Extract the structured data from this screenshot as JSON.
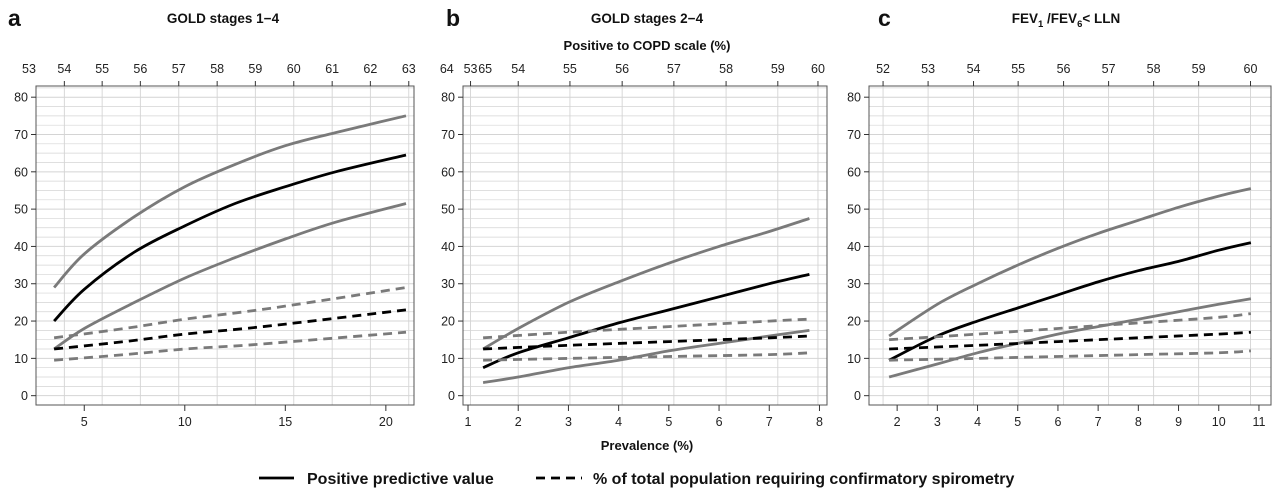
{
  "chart_data": [
    {
      "type": "line",
      "letter": "a",
      "title": "GOLD stages 1−4",
      "xlabel": "",
      "top_axis_label": "",
      "xlim": [
        2.6,
        21.4
      ],
      "xticks": [
        5,
        10,
        15,
        20
      ],
      "ylim": [
        -2.5,
        83
      ],
      "yticks": [
        0,
        10,
        20,
        30,
        40,
        50,
        60,
        70,
        80
      ],
      "top_ticks": [
        {
          "label": "53",
          "at": 2.25
        },
        {
          "label": "54",
          "at": 4.01
        },
        {
          "label": "55",
          "at": 5.89
        },
        {
          "label": "56",
          "at": 7.79
        },
        {
          "label": "57",
          "at": 9.7
        },
        {
          "label": "58",
          "at": 11.61
        },
        {
          "label": "59",
          "at": 13.51
        },
        {
          "label": "60",
          "at": 15.42
        },
        {
          "label": "61",
          "at": 17.33
        },
        {
          "label": "62",
          "at": 19.23
        },
        {
          "label": "63",
          "at": 21.14
        },
        {
          "label": "64",
          "at": 23.03
        },
        {
          "label": "65",
          "at": 24.94
        }
      ],
      "series": [
        {
          "style": "solid",
          "color": "#000000",
          "x": [
            3.5,
            5,
            7.5,
            10,
            12.5,
            15,
            17.5,
            21
          ],
          "y": [
            20,
            28.5,
            38.5,
            45.5,
            51.5,
            56,
            60,
            64.5
          ]
        },
        {
          "style": "solid",
          "color": "#7a7a7a",
          "x": [
            3.5,
            5,
            7.5,
            10,
            12.5,
            15,
            17.5,
            21
          ],
          "y": [
            29,
            38,
            48,
            56,
            62,
            67,
            70.5,
            75
          ]
        },
        {
          "style": "solid",
          "color": "#7a7a7a",
          "x": [
            3.5,
            5,
            7.5,
            10,
            12.5,
            15,
            17.5,
            21
          ],
          "y": [
            12.5,
            18,
            25,
            31.5,
            37,
            42,
            46.5,
            51.5
          ]
        },
        {
          "style": "dashed",
          "color": "#000000",
          "x": [
            3.5,
            7,
            10,
            13,
            16,
            21
          ],
          "y": [
            12.5,
            14.5,
            16.5,
            18,
            19.8,
            23
          ]
        },
        {
          "style": "dashed",
          "color": "#7a7a7a",
          "x": [
            3.5,
            7,
            10,
            13,
            16,
            21
          ],
          "y": [
            15.5,
            18,
            20.5,
            22.5,
            24.8,
            29
          ]
        },
        {
          "style": "dashed",
          "color": "#7a7a7a",
          "x": [
            3.5,
            7,
            10,
            13,
            16,
            21
          ],
          "y": [
            9.5,
            11,
            12.5,
            13.5,
            14.8,
            17
          ]
        }
      ]
    },
    {
      "type": "line",
      "letter": "b",
      "title": "GOLD stages 2−4",
      "xlabel": "Prevalence (%)",
      "top_axis_label": "Positive to COPD scale (%)",
      "xlim": [
        0.9,
        8.15
      ],
      "xticks": [
        1,
        2,
        3,
        4,
        5,
        6,
        7,
        8
      ],
      "ylim": [
        -2.5,
        83
      ],
      "yticks": [
        0,
        10,
        20,
        30,
        40,
        50,
        60,
        70,
        80
      ],
      "top_ticks": [
        {
          "label": "53",
          "at": 1.05
        },
        {
          "label": "54",
          "at": 2.0
        },
        {
          "label": "55",
          "at": 3.03
        },
        {
          "label": "56",
          "at": 4.07
        },
        {
          "label": "57",
          "at": 5.1
        },
        {
          "label": "58",
          "at": 6.14
        },
        {
          "label": "59",
          "at": 7.17
        },
        {
          "label": "60",
          "at": 7.97
        }
      ],
      "series": [
        {
          "style": "solid",
          "color": "#000000",
          "x": [
            1.3,
            2,
            3,
            4,
            5,
            6,
            7,
            7.8
          ],
          "y": [
            7.5,
            11.5,
            15.5,
            19.5,
            23,
            26.5,
            30,
            32.5
          ]
        },
        {
          "style": "solid",
          "color": "#7a7a7a",
          "x": [
            1.3,
            2,
            3,
            4,
            5,
            6,
            7,
            7.8
          ],
          "y": [
            12.5,
            18,
            25,
            30.5,
            35.5,
            40,
            44,
            47.5
          ]
        },
        {
          "style": "solid",
          "color": "#7a7a7a",
          "x": [
            1.3,
            2,
            3,
            4,
            5,
            6,
            7,
            7.8
          ],
          "y": [
            3.5,
            5,
            7.5,
            9.5,
            12,
            14,
            16,
            17.5
          ]
        },
        {
          "style": "dashed",
          "color": "#000000",
          "x": [
            1.3,
            3,
            5,
            7,
            7.8
          ],
          "y": [
            12.5,
            13.5,
            14.5,
            15.5,
            16
          ]
        },
        {
          "style": "dashed",
          "color": "#7a7a7a",
          "x": [
            1.3,
            3,
            5,
            7,
            7.8
          ],
          "y": [
            15.5,
            17,
            18.5,
            20,
            20.5
          ]
        },
        {
          "style": "dashed",
          "color": "#7a7a7a",
          "x": [
            1.3,
            3,
            5,
            7,
            7.8
          ],
          "y": [
            9.5,
            10,
            10.5,
            11,
            11.5
          ]
        }
      ]
    },
    {
      "type": "line",
      "letter": "c",
      "title_main": "FEV",
      "title_sub1": "1",
      "title_mid": " /FEV",
      "title_sub2": "6",
      "title_end": "< LLN",
      "xlabel": "",
      "top_axis_label": "",
      "xlim": [
        1.3,
        11.3
      ],
      "xticks": [
        2,
        3,
        4,
        5,
        6,
        7,
        8,
        9,
        10,
        11
      ],
      "ylim": [
        -2.5,
        83
      ],
      "yticks": [
        0,
        10,
        20,
        30,
        40,
        50,
        60,
        70,
        80
      ],
      "top_ticks": [
        {
          "label": "52",
          "at": 1.65
        },
        {
          "label": "53",
          "at": 2.77
        },
        {
          "label": "54",
          "at": 3.9
        },
        {
          "label": "55",
          "at": 5.01
        },
        {
          "label": "56",
          "at": 6.14
        },
        {
          "label": "57",
          "at": 7.26
        },
        {
          "label": "58",
          "at": 8.38
        },
        {
          "label": "59",
          "at": 9.5
        },
        {
          "label": "60",
          "at": 10.79
        }
      ],
      "series": [
        {
          "style": "solid",
          "color": "#000000",
          "x": [
            1.8,
            3,
            4,
            5,
            6,
            7,
            8,
            9,
            10,
            10.8
          ],
          "y": [
            9.5,
            16,
            20,
            23.5,
            27,
            30.5,
            33.5,
            36,
            39,
            41
          ]
        },
        {
          "style": "solid",
          "color": "#7a7a7a",
          "x": [
            1.8,
            3,
            4,
            5,
            6,
            7,
            8,
            9,
            10,
            10.8
          ],
          "y": [
            16,
            24.5,
            30,
            35,
            39.5,
            43.5,
            47,
            50.5,
            53.5,
            55.5
          ]
        },
        {
          "style": "solid",
          "color": "#7a7a7a",
          "x": [
            1.8,
            3,
            4,
            5,
            6,
            7,
            8,
            9,
            10,
            10.8
          ],
          "y": [
            5,
            8.5,
            11.5,
            14,
            16.5,
            18.5,
            20.5,
            22.5,
            24.5,
            26
          ]
        },
        {
          "style": "dashed",
          "color": "#000000",
          "x": [
            1.8,
            4,
            6,
            8,
            10,
            10.8
          ],
          "y": [
            12.5,
            13.5,
            14.5,
            15.5,
            16.5,
            17
          ]
        },
        {
          "style": "dashed",
          "color": "#7a7a7a",
          "x": [
            1.8,
            4,
            6,
            8,
            10,
            10.8
          ],
          "y": [
            15,
            16.5,
            18,
            19.5,
            21,
            22
          ]
        },
        {
          "style": "dashed",
          "color": "#7a7a7a",
          "x": [
            1.8,
            4,
            6,
            8,
            10,
            10.8
          ],
          "y": [
            9.5,
            10,
            10.5,
            11,
            11.5,
            12
          ]
        }
      ]
    }
  ],
  "legend": {
    "solid_label": "Positive predictive value",
    "dashed_label": "% of total population requiring confirmatory spirometry"
  },
  "colors": {
    "main_line": "#000000",
    "ci_line": "#7a7a7a",
    "grid": "#d4d4d4",
    "frame": "#555555"
  }
}
